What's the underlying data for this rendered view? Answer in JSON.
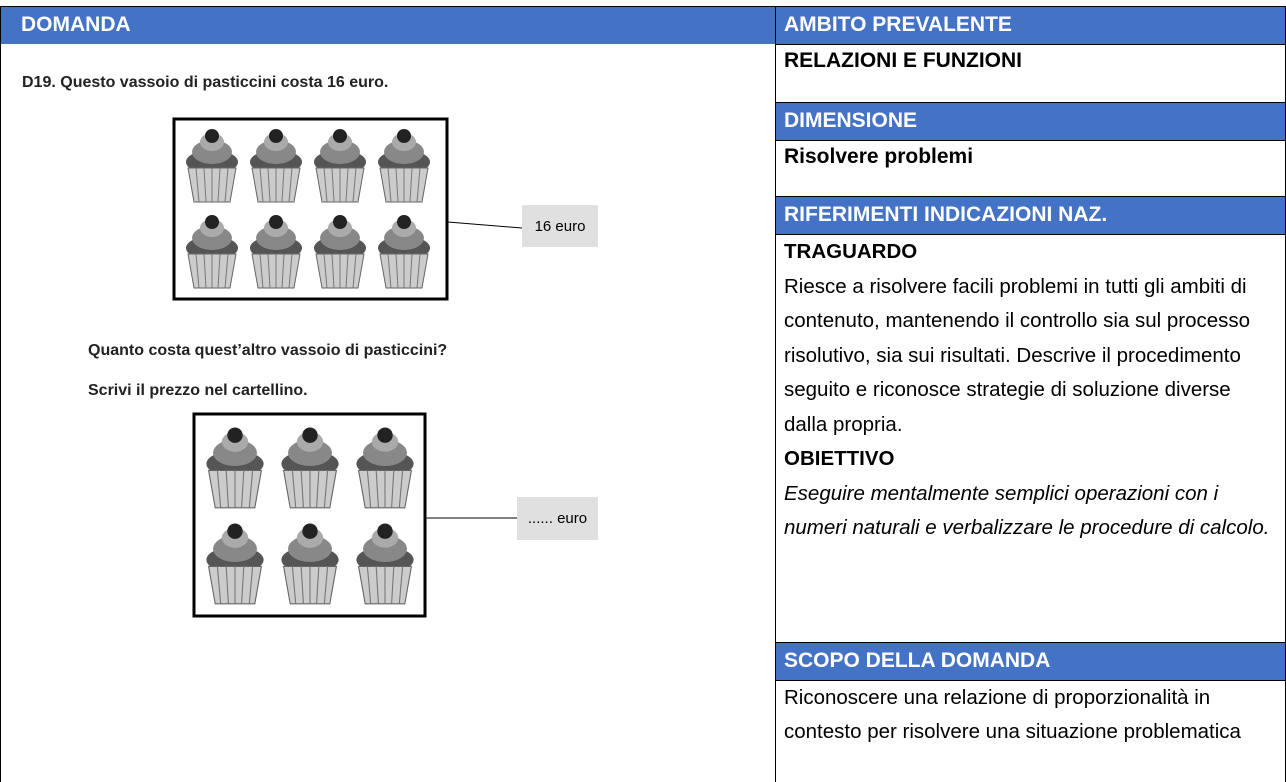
{
  "header": {
    "domanda": "DOMANDA",
    "ambito": "AMBITO PREVALENTE"
  },
  "question": {
    "intro": "D19. Questo vassoio di pasticcini costa 16 euro.",
    "price_tag": "16 euro",
    "ask": "Quanto costa quest’altro vassoio di pasticcini?",
    "instruction": "Scrivi il prezzo nel cartellino.",
    "answer_tag": "...... euro"
  },
  "ambito": "RELAZIONI E FUNZIONI",
  "dimensione": {
    "title": "DIMENSIONE",
    "text": "Risolvere problemi"
  },
  "riferimenti": {
    "title": "RIFERIMENTI INDICAZIONI NAZ.",
    "traguardo_title": "TRAGUARDO",
    "traguardo": "Riesce a risolvere facili problemi in tutti gli ambiti di contenuto, mantenendo il controllo sia sul processo risolutivo, sia sui risultati. Descrive il procedimento seguito e riconosce strategie di soluzione diverse dalla propria.",
    "obiettivo_title": "OBIETTIVO",
    "obiettivo": "Eseguire mentalmente semplici operazioni con i numeri naturali e verbalizzare le procedure di calcolo."
  },
  "scopo": {
    "title": "SCOPO DELLA DOMANDA",
    "text": "Riconoscere una relazione di proporzionalità in contesto per risolvere una situazione problematica"
  }
}
